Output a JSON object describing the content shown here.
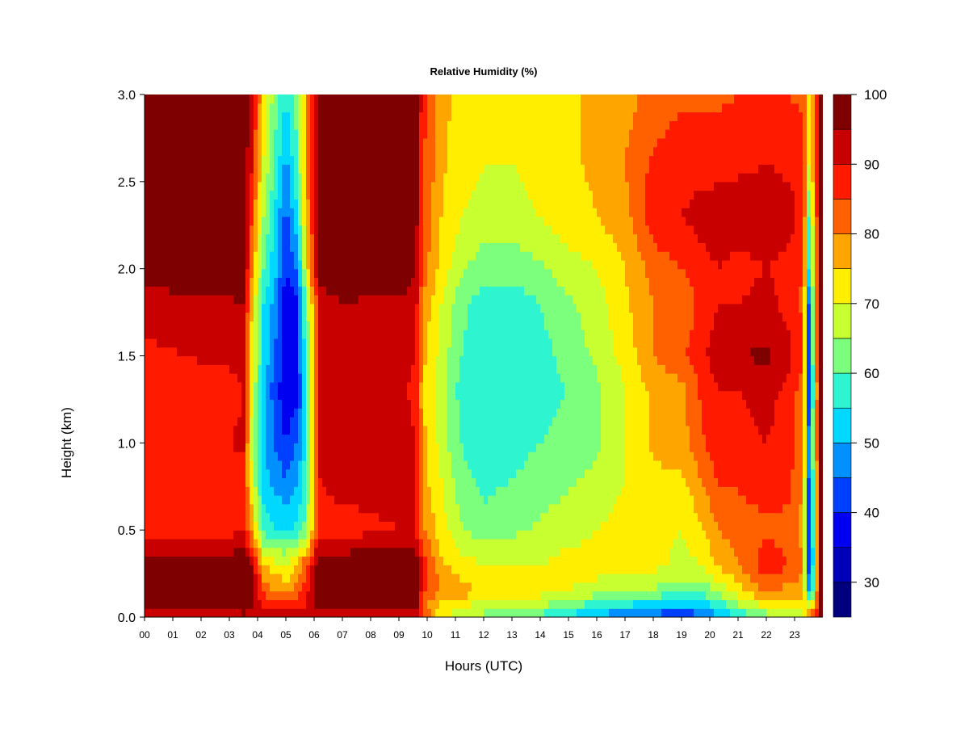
{
  "chart_data": {
    "type": "heatmap",
    "title": "Relative Humidity (%)",
    "xlabel": "Hours (UTC)",
    "ylabel": "Height (km)",
    "xlim": [
      0,
      24
    ],
    "ylim": [
      0.0,
      3.0
    ],
    "x_ticks": [
      "00",
      "01",
      "02",
      "03",
      "04",
      "05",
      "06",
      "07",
      "08",
      "09",
      "10",
      "11",
      "12",
      "13",
      "14",
      "15",
      "16",
      "17",
      "18",
      "19",
      "20",
      "21",
      "22",
      "23"
    ],
    "y_ticks": [
      "0.0",
      "0.5",
      "1.0",
      "1.5",
      "2.0",
      "2.5",
      "3.0"
    ],
    "colorbar": {
      "levels": [
        25,
        30,
        35,
        40,
        45,
        50,
        55,
        60,
        65,
        70,
        75,
        80,
        85,
        90,
        95,
        100
      ],
      "tick_labels": [
        "30",
        "40",
        "50",
        "60",
        "70",
        "80",
        "90",
        "100"
      ],
      "colors": [
        "#00007f",
        "#0000b8",
        "#0000f0",
        "#0040ff",
        "#0090ff",
        "#00d8ff",
        "#2ef5d0",
        "#7cff7c",
        "#c8ff30",
        "#ffee00",
        "#ffa500",
        "#ff6000",
        "#ff1a00",
        "#c80000",
        "#7f0000"
      ]
    },
    "grid": false,
    "x_hours": [
      0.0,
      1.5,
      3.0,
      3.5,
      3.8,
      4.2,
      4.6,
      5.0,
      5.4,
      5.7,
      6.2,
      7.0,
      8.0,
      9.0,
      9.6,
      9.9,
      10.5,
      11.2,
      12.0,
      13.0,
      14.0,
      15.0,
      16.0,
      17.0,
      18.0,
      19.0,
      19.7,
      20.3,
      21.0,
      22.0,
      22.8,
      23.3,
      23.5,
      23.7,
      23.9
    ],
    "heights_km": [
      0.0,
      0.05,
      0.15,
      0.3,
      0.5,
      0.8,
      1.0,
      1.3,
      1.5,
      1.8,
      2.0,
      2.3,
      2.6,
      3.0
    ],
    "rh_percent": [
      [
        92,
        97,
        99,
        99,
        88,
        87,
        90,
        88,
        89,
        92,
        99,
        99,
        99,
        99
      ],
      [
        92,
        97,
        99,
        99,
        88,
        87,
        90,
        88,
        90,
        93,
        99,
        99,
        99,
        99
      ],
      [
        92,
        97,
        99,
        99,
        88,
        87,
        90,
        88,
        91,
        94,
        99,
        99,
        99,
        99
      ],
      [
        93,
        97,
        99,
        99,
        90,
        88,
        91,
        90,
        92,
        95,
        99,
        99,
        99,
        99
      ],
      [
        92,
        96,
        97,
        95,
        78,
        70,
        68,
        70,
        72,
        75,
        80,
        85,
        90,
        92
      ],
      [
        92,
        90,
        85,
        75,
        58,
        52,
        52,
        52,
        55,
        55,
        60,
        65,
        70,
        75
      ],
      [
        92,
        88,
        80,
        72,
        55,
        48,
        45,
        42,
        45,
        48,
        52,
        55,
        60,
        62
      ],
      [
        92,
        88,
        78,
        70,
        55,
        45,
        40,
        36,
        38,
        35,
        40,
        43,
        48,
        55
      ],
      [
        92,
        88,
        82,
        75,
        56,
        50,
        45,
        38,
        40,
        38,
        45,
        55,
        60,
        62
      ],
      [
        92,
        90,
        88,
        85,
        62,
        58,
        55,
        55,
        58,
        60,
        70,
        75,
        78,
        78
      ],
      [
        92,
        97,
        99,
        99,
        88,
        90,
        92,
        90,
        92,
        92,
        99,
        99,
        99,
        99
      ],
      [
        92,
        97,
        99,
        99,
        88,
        92,
        94,
        93,
        94,
        95,
        99,
        99,
        99,
        99
      ],
      [
        92,
        97,
        99,
        99,
        89,
        92,
        93,
        92,
        93,
        94,
        99,
        99,
        99,
        99
      ],
      [
        92,
        97,
        99,
        99,
        90,
        92,
        93,
        92,
        93,
        94,
        99,
        99,
        99,
        99
      ],
      [
        92,
        97,
        99,
        99,
        90,
        90,
        90,
        88,
        90,
        92,
        96,
        97,
        97,
        97
      ],
      [
        88,
        80,
        85,
        88,
        80,
        76,
        76,
        74,
        76,
        78,
        82,
        84,
        85,
        86
      ],
      [
        72,
        72,
        80,
        76,
        72,
        70,
        68,
        67,
        68,
        70,
        73,
        75,
        76,
        77
      ],
      [
        66,
        70,
        78,
        72,
        66,
        62,
        60,
        58,
        60,
        62,
        66,
        70,
        72,
        73
      ],
      [
        64,
        66,
        74,
        70,
        62,
        58,
        56,
        55,
        56,
        57,
        62,
        68,
        70,
        72
      ],
      [
        60,
        64,
        72,
        70,
        64,
        60,
        58,
        56,
        56,
        57,
        62,
        68,
        70,
        72
      ],
      [
        58,
        64,
        72,
        70,
        66,
        62,
        60,
        58,
        58,
        60,
        64,
        70,
        72,
        73
      ],
      [
        52,
        60,
        70,
        72,
        68,
        64,
        62,
        60,
        62,
        64,
        68,
        73,
        74,
        74
      ],
      [
        48,
        55,
        68,
        72,
        70,
        66,
        64,
        64,
        66,
        68,
        70,
        75,
        76,
        76
      ],
      [
        44,
        52,
        66,
        72,
        72,
        70,
        70,
        70,
        72,
        74,
        75,
        78,
        80,
        78
      ],
      [
        42,
        50,
        64,
        72,
        72,
        74,
        76,
        76,
        80,
        80,
        82,
        88,
        86,
        82
      ],
      [
        38,
        48,
        62,
        68,
        70,
        74,
        78,
        78,
        84,
        82,
        85,
        90,
        88,
        84
      ],
      [
        42,
        50,
        62,
        70,
        74,
        80,
        84,
        86,
        88,
        86,
        88,
        92,
        88,
        84
      ],
      [
        48,
        55,
        66,
        76,
        80,
        86,
        88,
        90,
        94,
        90,
        90,
        93,
        88,
        84
      ],
      [
        55,
        62,
        72,
        80,
        82,
        86,
        88,
        90,
        95,
        90,
        88,
        93,
        89,
        85
      ],
      [
        60,
        70,
        82,
        88,
        84,
        88,
        90,
        92,
        96,
        92,
        90,
        94,
        90,
        86
      ],
      [
        62,
        68,
        78,
        85,
        84,
        86,
        88,
        88,
        92,
        88,
        88,
        92,
        89,
        85
      ],
      [
        72,
        70,
        78,
        80,
        78,
        80,
        82,
        82,
        85,
        84,
        85,
        88,
        88,
        84
      ],
      [
        88,
        70,
        50,
        40,
        40,
        45,
        48,
        40,
        42,
        45,
        55,
        60,
        70,
        72
      ],
      [
        86,
        78,
        65,
        60,
        62,
        65,
        68,
        66,
        68,
        70,
        72,
        75,
        80,
        82
      ],
      [
        95,
        95,
        96,
        98,
        98,
        98,
        98,
        98,
        98,
        98,
        98,
        98,
        98,
        98
      ]
    ]
  }
}
